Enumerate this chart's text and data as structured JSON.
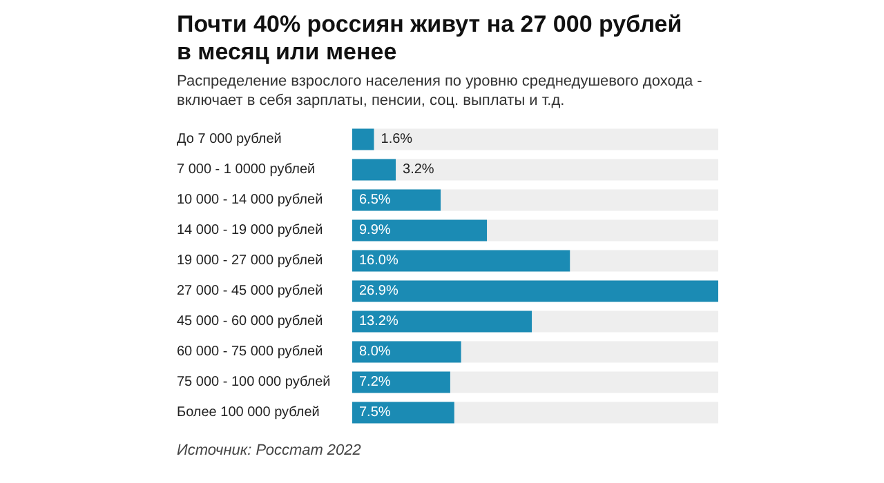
{
  "chart_data": {
    "type": "bar",
    "orientation": "horizontal",
    "title": "Почти 40% россиян живут на 27 000 рублей в месяц или менее",
    "subtitle": "Распределение взрослого населения по уровню среднедушевого дохода - включает в себя зарплаты, пенсии, соц. выплаты и т.д.",
    "categories": [
      "До 7 000 рублей",
      "7 000 - 1 0000 рублей",
      "10 000 - 14 000 рублей",
      "14 000 - 19 000 рублей",
      "19 000 - 27 000 рублей",
      "27 000 - 45 000 рублей",
      "45 000 - 60 000 рублей",
      "60 000 - 75 000 рублей",
      "75 000 - 100 000 рублей",
      "Более 100 000 рублей"
    ],
    "values": [
      1.6,
      3.2,
      6.5,
      9.9,
      16.0,
      26.9,
      13.2,
      8.0,
      7.2,
      7.5
    ],
    "value_labels": [
      "1.6%",
      "3.2%",
      "6.5%",
      "9.9%",
      "16.0%",
      "26.9%",
      "13.2%",
      "8.0%",
      "7.2%",
      "7.5%"
    ],
    "color": "#1b8bb4",
    "annotations": [
      "Источник: Росстат 2022"
    ]
  }
}
